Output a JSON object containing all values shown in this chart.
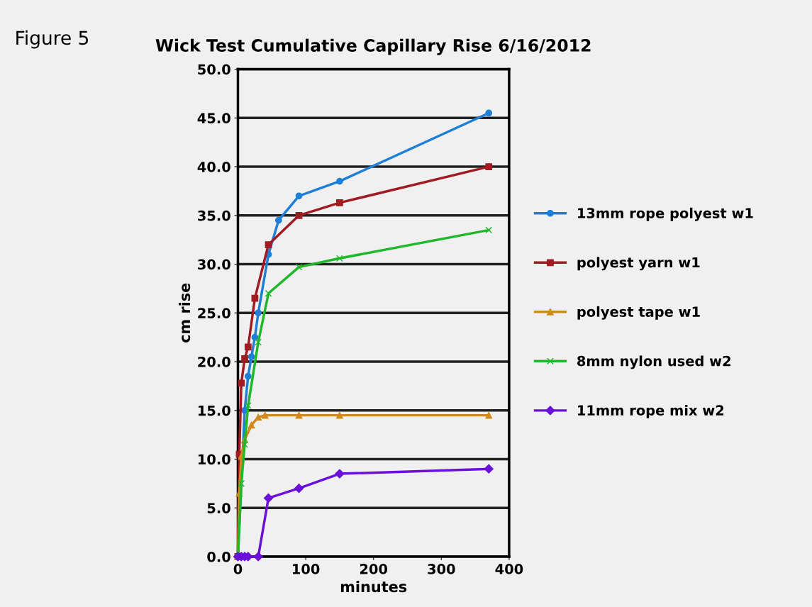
{
  "chart_data": {
    "type": "line",
    "title": "Wick Test Cumulative Capillary Rise 6/16/2012",
    "xlabel": "minutes",
    "ylabel": "cm rise",
    "annotations": [
      "Figure 5"
    ],
    "xlim": [
      0,
      400
    ],
    "xticks": [
      0,
      100,
      200,
      300,
      400
    ],
    "ylim": [
      0,
      50
    ],
    "yticks": [
      {
        "value": 0,
        "label": "0.0"
      },
      {
        "value": 5,
        "label": "5.0"
      },
      {
        "value": 10,
        "label": "10.0"
      },
      {
        "value": 15,
        "label": "15.0"
      },
      {
        "value": 20,
        "label": "20.0"
      },
      {
        "value": 25,
        "label": "25.0"
      },
      {
        "value": 30,
        "label": "30.0"
      },
      {
        "value": 35,
        "label": "35.0"
      },
      {
        "value": 40,
        "label": "40.0"
      },
      {
        "value": 45,
        "label": "45.0"
      },
      {
        "value": 50,
        "label": "50.0"
      }
    ],
    "grid": "y",
    "legend": "right",
    "series": [
      {
        "name": "13mm rope polyest w1",
        "color": "#1f7fd6",
        "marker": "circle",
        "x": [
          0,
          10,
          15,
          20,
          25,
          30,
          45,
          60,
          90,
          150,
          370
        ],
        "values": [
          0,
          15,
          18.5,
          20.5,
          22.5,
          25,
          31,
          34.5,
          37,
          38.5,
          45.5
        ]
      },
      {
        "name": "polyest yarn w1",
        "color": "#a01c22",
        "marker": "square",
        "x": [
          0,
          2,
          5,
          10,
          15,
          25,
          45,
          90,
          150,
          370
        ],
        "values": [
          0,
          10.5,
          17.8,
          20.3,
          21.5,
          26.5,
          32,
          35,
          36.3,
          40
        ]
      },
      {
        "name": "polyest tape w1",
        "color": "#d08a1a",
        "marker": "triangle",
        "x": [
          0,
          2,
          5,
          10,
          20,
          30,
          40,
          90,
          150,
          370
        ],
        "values": [
          0,
          6.5,
          10.3,
          12,
          13.5,
          14.3,
          14.5,
          14.5,
          14.5,
          14.5
        ]
      },
      {
        "name": "8mm nylon used w2",
        "color": "#1fb82a",
        "marker": "cross",
        "x": [
          0,
          5,
          10,
          15,
          30,
          45,
          90,
          150,
          370
        ],
        "values": [
          0,
          7.5,
          11.5,
          15.5,
          22,
          27,
          29.7,
          30.6,
          33.5
        ]
      },
      {
        "name": "11mm rope mix w2",
        "color": "#6a10d8",
        "marker": "diamond",
        "x": [
          0,
          5,
          10,
          15,
          30,
          45,
          90,
          150,
          370
        ],
        "values": [
          0,
          0,
          0,
          0,
          0,
          6,
          7,
          8.5,
          9
        ]
      }
    ]
  }
}
